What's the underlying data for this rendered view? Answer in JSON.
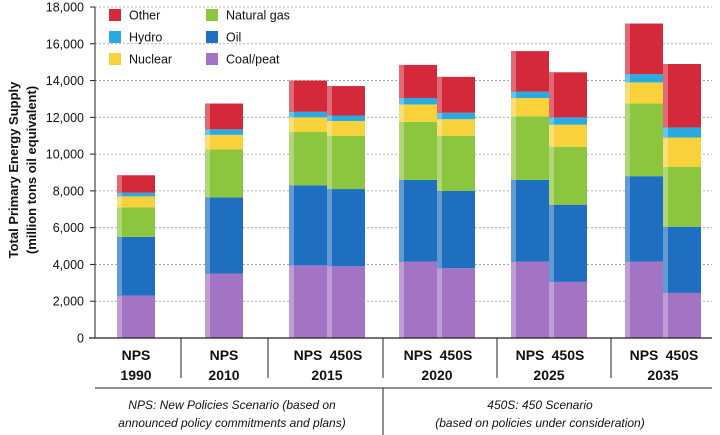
{
  "chart_data": {
    "type": "stacked-bar",
    "ylabel_line1": "Total Primary Energy Supply",
    "ylabel_line2": "(million tons oil equivalent)",
    "ylim": [
      0,
      18000
    ],
    "yticks": [
      "0",
      "2,000",
      "4,000",
      "6,000",
      "8,000",
      "10,000",
      "12,000",
      "14,000",
      "16,000",
      "18,000"
    ],
    "series": [
      {
        "name": "Coal/peat",
        "color": "#a374c4",
        "values": [
          2300,
          3500,
          3950,
          3900,
          4150,
          3800,
          4150,
          3050,
          4150,
          2450
        ]
      },
      {
        "name": "Oil",
        "color": "#1e6fc0",
        "values": [
          3200,
          4150,
          4350,
          4200,
          4450,
          4200,
          4450,
          4200,
          4650,
          3600
        ]
      },
      {
        "name": "Natural gas",
        "color": "#8cc63f",
        "values": [
          1600,
          2600,
          2900,
          2900,
          3150,
          3000,
          3450,
          3150,
          3950,
          3250
        ]
      },
      {
        "name": "Nuclear",
        "color": "#f9d13b",
        "values": [
          600,
          800,
          800,
          800,
          950,
          900,
          1000,
          1200,
          1150,
          1600
        ]
      },
      {
        "name": "Hydro",
        "color": "#29abe2",
        "values": [
          200,
          300,
          300,
          300,
          350,
          350,
          350,
          400,
          450,
          550
        ]
      },
      {
        "name": "Other",
        "color": "#d4293b",
        "values": [
          950,
          1400,
          1700,
          1600,
          1800,
          1950,
          2200,
          2450,
          2750,
          3450
        ]
      }
    ],
    "groups": [
      {
        "bars": [
          0
        ],
        "labels": [
          "NPS"
        ],
        "year": "1990"
      },
      {
        "bars": [
          1
        ],
        "labels": [
          "NPS"
        ],
        "year": "2010"
      },
      {
        "bars": [
          2,
          3
        ],
        "labels": [
          "NPS",
          "450S"
        ],
        "year": "2015"
      },
      {
        "bars": [
          4,
          5
        ],
        "labels": [
          "NPS",
          "450S"
        ],
        "year": "2020"
      },
      {
        "bars": [
          6,
          7
        ],
        "labels": [
          "NPS",
          "450S"
        ],
        "year": "2025"
      },
      {
        "bars": [
          8,
          9
        ],
        "labels": [
          "NPS",
          "450S"
        ],
        "year": "2035"
      }
    ],
    "legend_order": [
      5,
      2,
      4,
      1,
      3,
      0
    ],
    "footnotes": {
      "left_line1": "NPS: New Policies Scenario (based on",
      "left_line2": "announced policy commitments and plans)",
      "right_line1": "450S: 450 Scenario",
      "right_line2": "(based on policies under consideration)"
    }
  }
}
